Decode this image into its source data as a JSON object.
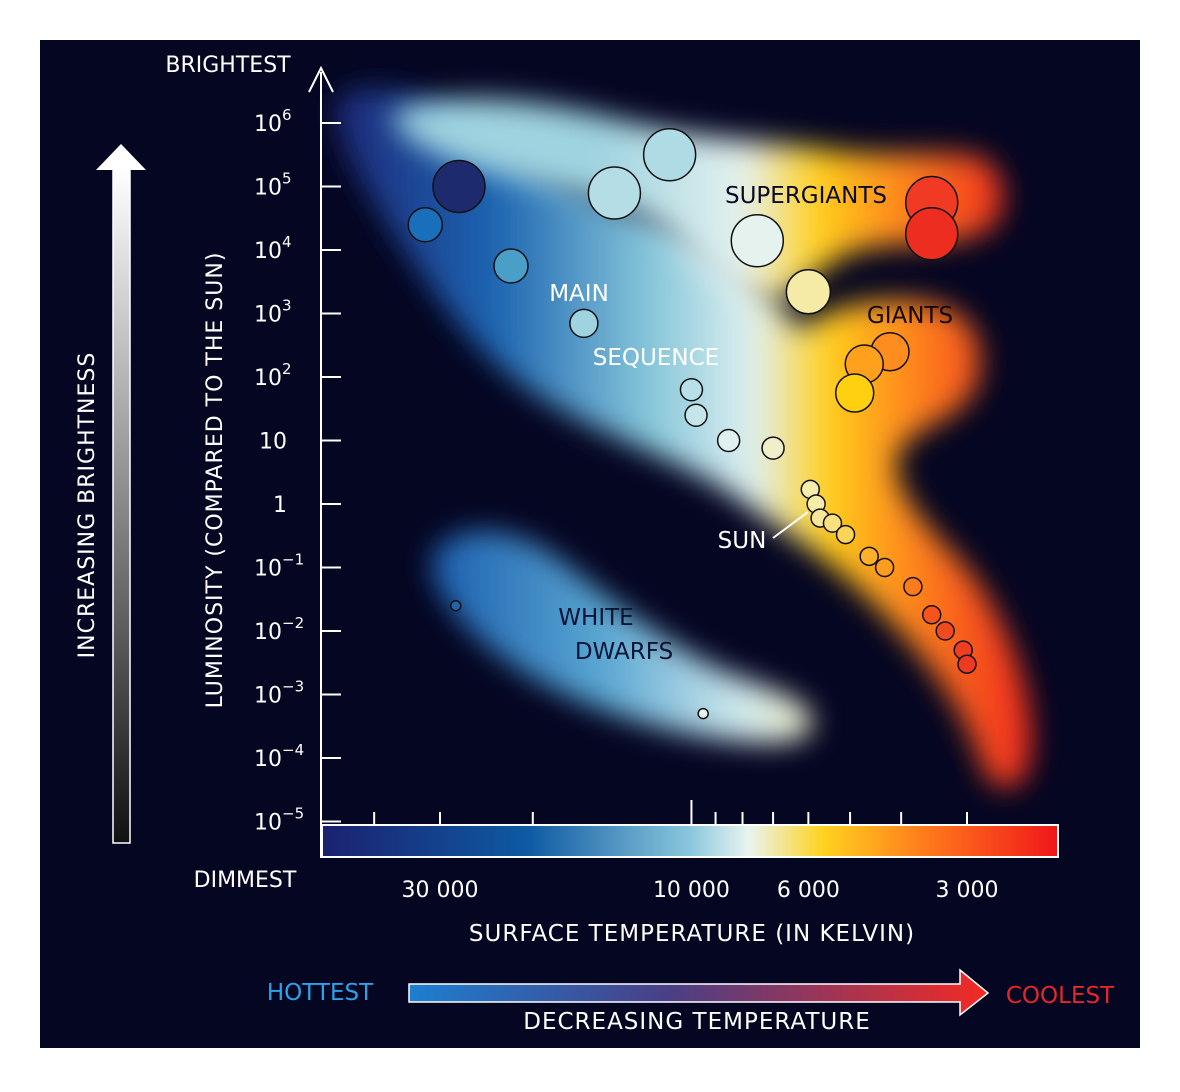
{
  "chart_data": {
    "type": "scatter",
    "title": "",
    "ylabel": "LUMINOSITY (COMPARED TO THE SUN)",
    "xlabel": "SURFACE TEMPERATURE (IN KELVIN)",
    "y_scale": "log",
    "x_scale": "log",
    "x_axis_reversed": true,
    "ylim": [
      1e-05,
      1000000
    ],
    "xlim": [
      3000,
      30000
    ],
    "y_ticks": [
      {
        "base": "10",
        "exp": "6"
      },
      {
        "base": "10",
        "exp": "5"
      },
      {
        "base": "10",
        "exp": "4"
      },
      {
        "base": "10",
        "exp": "3"
      },
      {
        "base": "10",
        "exp": "2"
      },
      {
        "base": "10",
        "exp": ""
      },
      {
        "base": "1",
        "exp": ""
      },
      {
        "base": "10",
        "exp": "−1"
      },
      {
        "base": "10",
        "exp": "−2"
      },
      {
        "base": "10",
        "exp": "−3"
      },
      {
        "base": "10",
        "exp": "−4"
      },
      {
        "base": "10",
        "exp": "−5"
      }
    ],
    "x_ticks": [
      "30 000",
      "10 000",
      "6 000",
      "3 000"
    ],
    "y_top_label": "BRIGHTEST",
    "y_bottom_label": "DIMMEST",
    "brightness_arrow_label": "INCREASING BRIGHTNESS",
    "temperature_arrow": {
      "left": "HOTTEST",
      "right": "COOLEST",
      "label": "DECREASING TEMPERATURE"
    },
    "region_labels": [
      "SUPERGIANTS",
      "GIANTS",
      "MAIN",
      "SEQUENCE",
      "WHITE",
      "DWARFS",
      "SUN"
    ],
    "colors": {
      "background": "#050622",
      "hot": "#1b2a7a",
      "blue": "#1a6fbf",
      "white": "#dff0f0",
      "yellow": "#ffd21f",
      "orange": "#ff8c1a",
      "red": "#f0281e",
      "hottest_text": "#2aa3e8",
      "coolest_text": "#e8262a"
    },
    "series": [
      {
        "group": "supergiants",
        "points": [
          {
            "temp": 35000,
            "lum": 100000,
            "color": "#1d2a6e"
          },
          {
            "temp": 11000,
            "lum": 316000,
            "color": "#aedbe4"
          },
          {
            "temp": 14000,
            "lum": 79000,
            "color": "#b5dde6"
          },
          {
            "temp": 7500,
            "lum": 14000,
            "color": "#e6f2ee"
          },
          {
            "temp": 6000,
            "lum": 2200,
            "color": "#f5eba6"
          },
          {
            "temp": 3500,
            "lum": 56000,
            "color": "#f03a24"
          },
          {
            "temp": 3500,
            "lum": 18000,
            "color": "#ee2d21"
          }
        ]
      },
      {
        "group": "giants",
        "points": [
          {
            "temp": 4200,
            "lum": 250,
            "color": "#ff8c1f"
          },
          {
            "temp": 4700,
            "lum": 160,
            "color": "#ffa11c"
          },
          {
            "temp": 4900,
            "lum": 56,
            "color": "#ffd010"
          }
        ]
      },
      {
        "group": "main sequence",
        "points": [
          {
            "temp": 32000,
            "lum": 25000,
            "color": "#1a6fba"
          },
          {
            "temp": 22000,
            "lum": 5600,
            "color": "#4a9fc8"
          },
          {
            "temp": 16000,
            "lum": 700,
            "color": "#a0d3e0"
          },
          {
            "temp": 10000,
            "lum": 63,
            "color": "#b9e0e8"
          },
          {
            "temp": 9800,
            "lum": 25,
            "color": "#c5e5eb"
          },
          {
            "temp": 8500,
            "lum": 10,
            "color": "#e0f0ee"
          },
          {
            "temp": 7000,
            "lum": 7.6,
            "color": "#f1efc9"
          },
          {
            "temp": 5950,
            "lum": 1.7,
            "color": "#f5ecae"
          },
          {
            "temp": 5800,
            "lum": 1,
            "color": "#f7eca8",
            "label": "SUN"
          },
          {
            "temp": 5700,
            "lum": 0.6,
            "color": "#f8e698"
          },
          {
            "temp": 5400,
            "lum": 0.5,
            "color": "#fbe07e"
          },
          {
            "temp": 5100,
            "lum": 0.33,
            "color": "#fcd45a"
          },
          {
            "temp": 4600,
            "lum": 0.15,
            "color": "#fdb12a"
          },
          {
            "temp": 4300,
            "lum": 0.1,
            "color": "#fd9d20"
          },
          {
            "temp": 3800,
            "lum": 0.05,
            "color": "#fb7a1c"
          },
          {
            "temp": 3500,
            "lum": 0.018,
            "color": "#f5541d"
          },
          {
            "temp": 3300,
            "lum": 0.01,
            "color": "#f24a1f"
          },
          {
            "temp": 3050,
            "lum": 0.005,
            "color": "#ef3f20"
          },
          {
            "temp": 3000,
            "lum": 0.003,
            "color": "#ee3a20"
          }
        ]
      },
      {
        "group": "white dwarfs",
        "points": [
          {
            "temp": 28000,
            "lum": 0.025,
            "color": "#2166ad"
          },
          {
            "temp": 9500,
            "lum": 0.0005,
            "color": "#e8f3ee"
          }
        ]
      }
    ]
  }
}
